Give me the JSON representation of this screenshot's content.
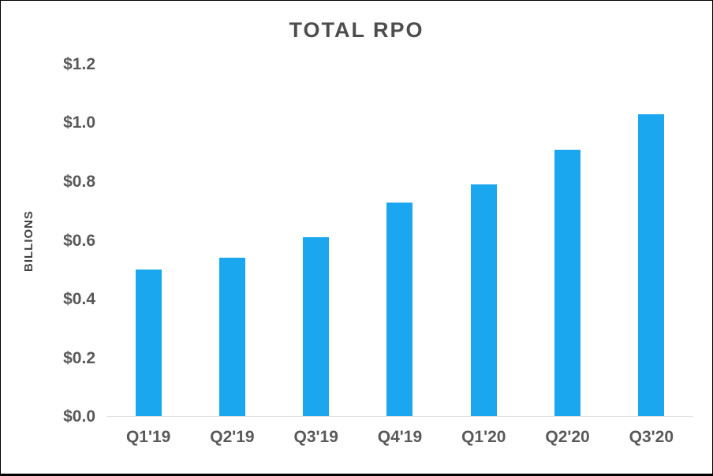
{
  "chart_data": {
    "type": "bar",
    "title": "TOTAL RPO",
    "ylabel": "BILLIONS",
    "xlabel": "",
    "categories": [
      "Q1'19",
      "Q2'19",
      "Q3'19",
      "Q4'19",
      "Q1'20",
      "Q2'20",
      "Q3'20"
    ],
    "values": [
      0.5,
      0.54,
      0.61,
      0.73,
      0.79,
      0.91,
      1.03
    ],
    "ylim": [
      0,
      1.2
    ],
    "yticks": [
      "$1.2",
      "$1.0",
      "$0.8",
      "$0.6",
      "$0.4",
      "$0.2",
      "$0.0"
    ],
    "grid": false,
    "legend": "none",
    "bar_color": "#1AA7F0",
    "text_color": "#595959",
    "title_color": "#4d4d4d"
  }
}
